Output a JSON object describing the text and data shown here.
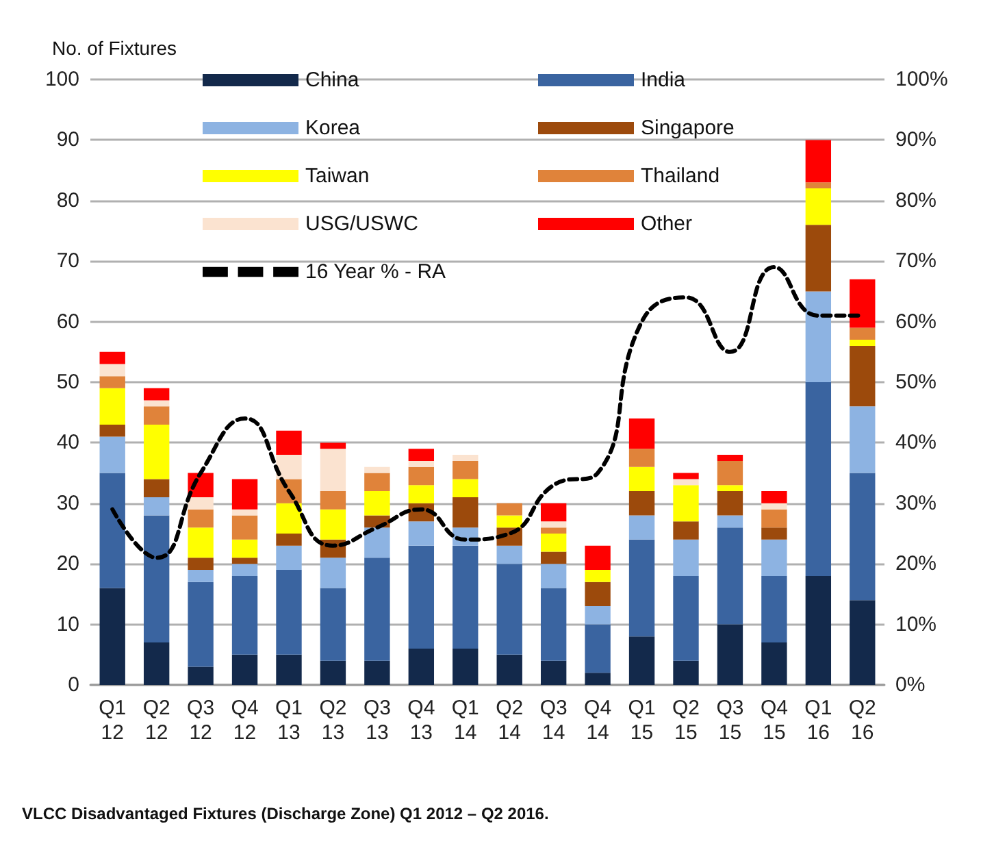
{
  "chart_data": {
    "type": "bar",
    "stacked": true,
    "ylabel": "No. of Fixtures",
    "categories": [
      "Q1\n12",
      "Q2\n12",
      "Q3\n12",
      "Q4\n12",
      "Q1\n13",
      "Q2\n13",
      "Q3\n13",
      "Q4\n13",
      "Q1\n14",
      "Q2\n14",
      "Q3\n14",
      "Q4\n14",
      "Q1\n15",
      "Q2\n15",
      "Q3\n15",
      "Q4\n15",
      "Q1\n16",
      "Q2\n16"
    ],
    "series": [
      {
        "name": "China",
        "color": "#13294b",
        "values": [
          16,
          7,
          3,
          5,
          5,
          4,
          4,
          6,
          6,
          5,
          4,
          2,
          8,
          4,
          10,
          7,
          18,
          14
        ]
      },
      {
        "name": "India",
        "color": "#3a64a0",
        "values": [
          19,
          21,
          14,
          13,
          14,
          12,
          17,
          17,
          17,
          15,
          12,
          8,
          16,
          14,
          16,
          11,
          32,
          21
        ]
      },
      {
        "name": "Korea",
        "color": "#8db3e2",
        "values": [
          6,
          3,
          2,
          2,
          4,
          5,
          5,
          4,
          3,
          3,
          4,
          3,
          4,
          6,
          2,
          6,
          15,
          11
        ]
      },
      {
        "name": "Singapore",
        "color": "#9c4a0c",
        "values": [
          2,
          3,
          2,
          1,
          2,
          3,
          2,
          3,
          5,
          3,
          2,
          4,
          4,
          3,
          4,
          2,
          11,
          10
        ]
      },
      {
        "name": "Taiwan",
        "color": "#ffff00",
        "values": [
          6,
          9,
          5,
          3,
          5,
          5,
          4,
          3,
          3,
          2,
          3,
          2,
          4,
          6,
          1,
          0,
          6,
          1
        ]
      },
      {
        "name": "Thailand",
        "color": "#e0833a",
        "values": [
          2,
          3,
          3,
          4,
          4,
          3,
          3,
          3,
          3,
          2,
          1,
          0,
          3,
          0,
          4,
          3,
          1,
          2
        ]
      },
      {
        "name": "USG/USWC",
        "color": "#fbe3d0",
        "values": [
          2,
          1,
          2,
          1,
          4,
          7,
          1,
          1,
          1,
          0,
          1,
          0,
          0,
          1,
          0,
          1,
          0,
          0
        ]
      },
      {
        "name": "Other",
        "color": "#ff0000",
        "values": [
          2,
          2,
          4,
          5,
          4,
          1,
          0,
          2,
          0,
          0,
          3,
          4,
          5,
          1,
          1,
          2,
          7,
          8
        ]
      },
      {
        "name": "16 Year % - RA",
        "type": "line",
        "axis": "y2",
        "color": "#000000",
        "line_style": "dashed",
        "marker": "none",
        "values": [
          29,
          21,
          35,
          44,
          32,
          23,
          26,
          29,
          24,
          25,
          33,
          35,
          60,
          64,
          55,
          69,
          61,
          61
        ]
      }
    ],
    "ylim": [
      0,
      100
    ],
    "yticks": [
      0,
      10,
      20,
      30,
      40,
      50,
      60,
      70,
      80,
      90,
      100
    ],
    "y2lim": [
      0,
      100
    ],
    "y2ticks": [
      {
        "value": 0,
        "label": "0%"
      },
      {
        "value": 10,
        "label": "10%"
      },
      {
        "value": 20,
        "label": "20%"
      },
      {
        "value": 30,
        "label": "30%"
      },
      {
        "value": 40,
        "label": "40%"
      },
      {
        "value": 50,
        "label": "50%"
      },
      {
        "value": 60,
        "label": "60%"
      },
      {
        "value": 70,
        "label": "70%"
      },
      {
        "value": 80,
        "label": "80%"
      },
      {
        "value": 90,
        "label": "90%"
      },
      {
        "value": 100,
        "label": "100%"
      }
    ],
    "grid": "y",
    "legend": "top",
    "annotations": [
      "VLCC Disadvantaged Fixtures (Discharge Zone) Q1 2012 – Q2 2016."
    ]
  }
}
